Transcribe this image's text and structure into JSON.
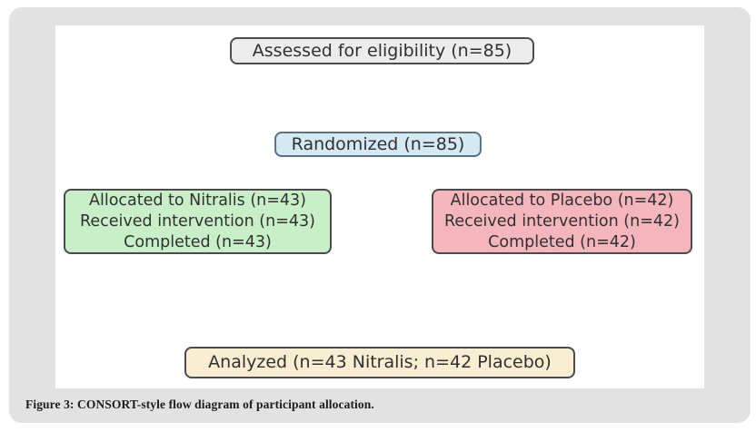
{
  "figure": {
    "caption_label": "Figure 3:",
    "caption_text": " CONSORT-style flow diagram of participant allocation."
  },
  "diagram": {
    "boxes": {
      "assessed": {
        "label": "Assessed for eligibility (n=85)",
        "fill": "#ececec",
        "border": "#4d4d4d"
      },
      "randomized": {
        "label": "Randomized (n=85)",
        "fill": "#d4e9f3",
        "border": "#5b7280"
      },
      "nitralis": {
        "lines": [
          "Allocated to Nitralis (n=43)",
          "Received intervention (n=43)",
          "Completed (n=43)"
        ],
        "fill": "#c8efc8",
        "border": "#4a4a4a"
      },
      "placebo": {
        "lines": [
          "Allocated to Placebo (n=42)",
          "Received intervention (n=42)",
          "Completed (n=42)"
        ],
        "fill": "#f4b6bc",
        "border": "#4a4a4a"
      },
      "analyzed": {
        "label": "Analyzed (n=43 Nitralis; n=42 Placebo)",
        "fill": "#f9eed2",
        "border": "#4a4a4a"
      }
    },
    "colors": {
      "panel_background": "#e2e2e2",
      "canvas_background": "#ffffff",
      "box_text": "#303030",
      "caption_text": "#1c1c1c"
    }
  }
}
